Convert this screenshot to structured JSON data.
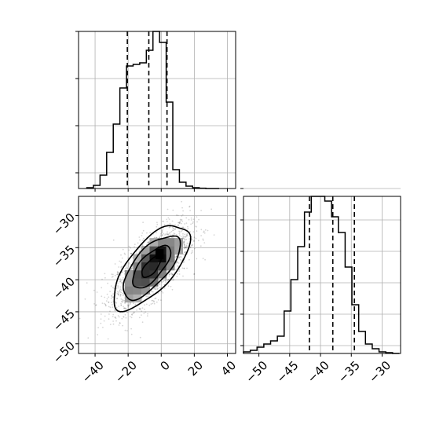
{
  "chart_data": [
    {
      "type": "histogram",
      "panel": "top-left",
      "xlim": [
        -50,
        45
      ],
      "ylim": [
        0,
        1
      ],
      "xticks": [
        -40,
        -20,
        0,
        20,
        40
      ],
      "yticks": [
        0.1,
        0.4,
        0.7,
        1.0
      ],
      "show_tick_labels": false,
      "grid": true,
      "bin_edges": [
        -45,
        -41,
        -37,
        -33,
        -29,
        -25,
        -21,
        -17,
        -13,
        -9,
        -5,
        -1,
        3,
        7,
        11,
        15,
        19,
        23,
        27,
        31,
        35
      ],
      "counts": [
        0.005,
        0.02,
        0.085,
        0.23,
        0.41,
        0.64,
        0.78,
        0.79,
        0.8,
        0.88,
        1.0,
        0.93,
        0.55,
        0.12,
        0.04,
        0.015,
        0.005,
        0.002,
        0.0,
        0.0
      ],
      "quantile_lines": [
        -20.5,
        -7.5,
        3.5
      ]
    },
    {
      "type": "scatter+hist2d+contour",
      "panel": "bottom-left",
      "xlim": [
        -50,
        45
      ],
      "ylim": [
        -51.5,
        -27
      ],
      "xticks": [
        -40,
        -20,
        0,
        20,
        40
      ],
      "yticks": [
        -30,
        -35,
        -40,
        -45,
        -50
      ],
      "xtick_labels": [
        "−40",
        "−20",
        "0",
        "20",
        "40"
      ],
      "ytick_labels": [
        "−30",
        "−35",
        "−40",
        "−45",
        "−50"
      ],
      "grid": true,
      "center": [
        -6,
        -38
      ],
      "sd": [
        11.5,
        3.3
      ],
      "correlation": 0.68,
      "n_points": 2200,
      "hist2d_peak": [
        -1,
        -36
      ],
      "contour_levels": [
        0.5,
        1.0,
        1.5,
        2.0
      ]
    },
    {
      "type": "histogram",
      "panel": "bottom-right",
      "xlim": [
        -52.5,
        -27
      ],
      "ylim": [
        0,
        1
      ],
      "xticks": [
        -50,
        -45,
        -40,
        -35,
        -30
      ],
      "yticks": [
        0.05,
        0.25,
        0.45,
        0.65,
        0.85,
        1.05
      ],
      "xtick_labels": [
        "−50",
        "−45",
        "−40",
        "−35",
        "−30"
      ],
      "show_ytick_labels": false,
      "grid": true,
      "bin_edges": [
        -52.5,
        -51.4,
        -50.3,
        -49.2,
        -48.1,
        -47.0,
        -45.9,
        -44.8,
        -43.7,
        -42.6,
        -41.5,
        -40.4,
        -39.3,
        -38.2,
        -37.1,
        -36.0,
        -34.9,
        -33.8,
        -32.7,
        -31.6,
        -30.5,
        -29.4,
        -28.3,
        -27.2
      ],
      "counts": [
        0.01,
        0.02,
        0.04,
        0.06,
        0.08,
        0.11,
        0.27,
        0.47,
        0.68,
        0.9,
        1.0,
        1.0,
        0.97,
        0.87,
        0.77,
        0.55,
        0.31,
        0.14,
        0.06,
        0.03,
        0.01,
        0.005,
        0.0
      ],
      "quantile_lines": [
        -41.8,
        -38.0,
        -34.5
      ]
    }
  ]
}
